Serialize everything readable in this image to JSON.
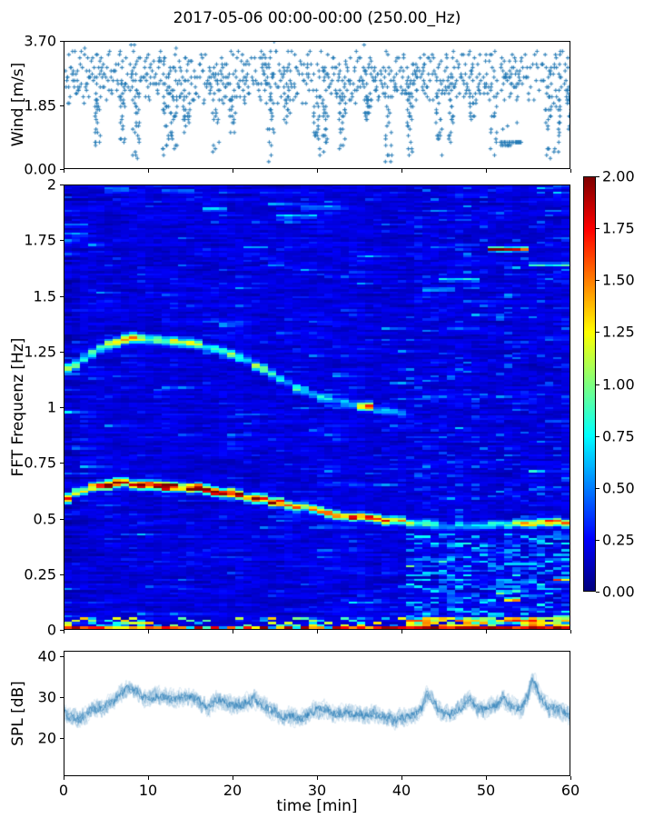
{
  "title": "2017-05-06 00:00-00:00 (250.00_Hz)",
  "colors": {
    "series_blue": "#1f77b4",
    "axis": "#000000",
    "background": "#ffffff"
  },
  "chart_data": [
    {
      "id": "wind",
      "type": "scatter",
      "ylabel": "Wind [m/s]",
      "ylim": [
        0,
        3.7
      ],
      "xlim": [
        0,
        60
      ],
      "yticks": [
        {
          "label": "3.70",
          "value": 3.7
        },
        {
          "label": "1.85",
          "value": 1.85
        },
        {
          "label": "0.00",
          "value": 0
        }
      ],
      "marker": "plus",
      "marker_color": "#1f77b4",
      "quantize_step": 0.095,
      "band": {
        "center": 2.62,
        "sd": 0.42,
        "min": 1.9,
        "max": 3.48,
        "density": 0.6,
        "step_min": 0.06
      },
      "outlier_times": [
        2.5,
        8,
        8.3,
        25,
        35.5
      ],
      "sparse_ranges": [
        [
          54.6,
          57.2,
          0.45
        ]
      ],
      "dips": [
        [
          4,
          0.5
        ],
        [
          7,
          0.35
        ],
        [
          8.5,
          0.15
        ],
        [
          12,
          0.3
        ],
        [
          13,
          0.5
        ],
        [
          14.5,
          0.9
        ],
        [
          18,
          0.3
        ],
        [
          20,
          1.0
        ],
        [
          24.5,
          0.15
        ],
        [
          26.5,
          1.3
        ],
        [
          30,
          0.05
        ],
        [
          31,
          0.2
        ],
        [
          33,
          0.5
        ],
        [
          36,
          1.3
        ],
        [
          38.5,
          0.1
        ],
        [
          41,
          0.35
        ],
        [
          44.5,
          0.2
        ],
        [
          46,
          0.6
        ],
        [
          48.5,
          1.3
        ],
        [
          51,
          0.3
        ],
        [
          57.5,
          0.2
        ],
        [
          58.5,
          0.3
        ],
        [
          60,
          0.9
        ]
      ],
      "flat_cluster": {
        "t0": 51.8,
        "t1": 54.3,
        "value": 0.74,
        "jitter": 0.1
      }
    },
    {
      "id": "spectrogram",
      "type": "heatmap",
      "ylabel": "FFT Frequenz [Hz]",
      "xlim": [
        0,
        60
      ],
      "ylim": [
        0,
        2
      ],
      "clim": [
        0,
        2
      ],
      "colormap": "jet",
      "yticks": [
        {
          "label": "2",
          "value": 2
        },
        {
          "label": "1.75",
          "value": 1.75
        },
        {
          "label": "1.5",
          "value": 1.5
        },
        {
          "label": "1.25",
          "value": 1.25
        },
        {
          "label": "1",
          "value": 1
        },
        {
          "label": "0.75",
          "value": 0.75
        },
        {
          "label": "0.5",
          "value": 0.5
        },
        {
          "label": "0.25",
          "value": 0.25
        },
        {
          "label": "0",
          "value": 0
        }
      ],
      "grid": {
        "nx": 62,
        "ny": 196
      },
      "background": {
        "base": 0.05,
        "rand": 0.24,
        "speckle_p": 0.1,
        "speckle_add": 0.38,
        "cyan_p": 0.012,
        "cyan_add": 0.6,
        "hsmooth": 0.55
      },
      "post_transition": {
        "t_start": 41,
        "f_max": 0.43,
        "p": 0.42,
        "add": 0.55
      },
      "tracks": [
        {
          "name": "upper-whistle",
          "width": 0.022,
          "points": [
            [
              0,
              1.17,
              1.3
            ],
            [
              2,
              1.2,
              1.0
            ],
            [
              4,
              1.26,
              0.95
            ],
            [
              6,
              1.29,
              1.1
            ],
            [
              8,
              1.31,
              1.6
            ],
            [
              10,
              1.3,
              1.25
            ],
            [
              12,
              1.295,
              1.05
            ],
            [
              14,
              1.29,
              1.15
            ],
            [
              16,
              1.28,
              0.95
            ],
            [
              18,
              1.26,
              0.85
            ],
            [
              20,
              1.23,
              1.15
            ],
            [
              22,
              1.2,
              0.85
            ],
            [
              24,
              1.16,
              0.9
            ],
            [
              26,
              1.12,
              0.8
            ],
            [
              28,
              1.08,
              0.72
            ],
            [
              30,
              1.05,
              0.62
            ],
            [
              32,
              1.03,
              0.6
            ],
            [
              34,
              1.01,
              0.55
            ],
            [
              36,
              1.0,
              1.5
            ],
            [
              37,
              0.99,
              0.8
            ],
            [
              38,
              0.98,
              0.55
            ],
            [
              40,
              0.97,
              0.45
            ],
            [
              42,
              0.96,
              0.3
            ]
          ]
        },
        {
          "name": "main-tone",
          "width": 0.02,
          "points": [
            [
              0,
              0.585,
              1.5
            ],
            [
              1,
              0.6,
              1.35
            ],
            [
              2,
              0.62,
              1.45
            ],
            [
              3,
              0.635,
              1.55
            ],
            [
              4,
              0.645,
              1.8
            ],
            [
              5,
              0.65,
              1.9
            ],
            [
              6,
              0.652,
              2.0
            ],
            [
              7,
              0.655,
              2.0
            ],
            [
              8,
              0.653,
              1.9
            ],
            [
              9,
              0.65,
              1.75
            ],
            [
              10,
              0.648,
              1.85
            ],
            [
              11,
              0.645,
              1.9
            ],
            [
              12,
              0.643,
              2.0
            ],
            [
              13,
              0.64,
              1.85
            ],
            [
              14,
              0.637,
              1.9
            ],
            [
              15,
              0.633,
              1.75
            ],
            [
              16,
              0.63,
              1.85
            ],
            [
              17,
              0.625,
              1.9
            ],
            [
              18,
              0.62,
              1.8
            ],
            [
              19,
              0.612,
              1.7
            ],
            [
              20,
              0.605,
              1.8
            ],
            [
              21,
              0.6,
              1.9
            ],
            [
              22,
              0.592,
              1.8
            ],
            [
              23,
              0.585,
              1.65
            ],
            [
              24,
              0.578,
              1.7
            ],
            [
              25,
              0.57,
              1.55
            ],
            [
              26,
              0.562,
              1.45
            ],
            [
              27,
              0.555,
              1.5
            ],
            [
              28,
              0.548,
              1.4
            ],
            [
              29,
              0.54,
              1.35
            ],
            [
              30,
              0.53,
              1.4
            ],
            [
              31,
              0.522,
              1.5
            ],
            [
              32,
              0.515,
              1.6
            ],
            [
              33,
              0.51,
              1.5
            ],
            [
              34,
              0.505,
              1.7
            ],
            [
              35,
              0.502,
              1.8
            ],
            [
              36,
              0.5,
              1.7
            ],
            [
              37,
              0.495,
              1.8
            ],
            [
              38,
              0.49,
              1.6
            ],
            [
              39,
              0.488,
              1.5
            ],
            [
              40,
              0.485,
              1.4
            ],
            [
              41,
              0.48,
              1.2
            ],
            [
              42,
              0.472,
              1.0
            ],
            [
              43,
              0.468,
              0.9
            ],
            [
              44,
              0.465,
              0.8
            ],
            [
              45,
              0.462,
              0.7
            ],
            [
              46,
              0.46,
              0.8
            ],
            [
              47,
              0.46,
              0.7
            ],
            [
              48,
              0.458,
              0.8
            ],
            [
              49,
              0.46,
              0.7
            ],
            [
              50,
              0.462,
              0.85
            ],
            [
              51,
              0.465,
              0.9
            ],
            [
              52,
              0.468,
              1.0
            ],
            [
              53,
              0.47,
              1.1
            ],
            [
              54,
              0.472,
              1.0
            ],
            [
              55,
              0.475,
              1.2
            ],
            [
              56,
              0.478,
              1.3
            ],
            [
              57,
              0.48,
              1.2
            ],
            [
              58,
              0.478,
              1.45
            ],
            [
              59,
              0.475,
              1.3
            ],
            [
              60,
              0.47,
              1.25
            ]
          ]
        }
      ],
      "streaks": [
        [
          50.5,
          55,
          1.71,
          1.9
        ],
        [
          45,
          49.5,
          1.575,
          0.75
        ],
        [
          55.5,
          60,
          1.64,
          0.85
        ],
        [
          25,
          30,
          1.86,
          0.7
        ],
        [
          28,
          33,
          1.9,
          0.6
        ],
        [
          0,
          2.5,
          1.78,
          0.55
        ],
        [
          0,
          3,
          1.82,
          0.55
        ],
        [
          5,
          8,
          1.98,
          0.55
        ],
        [
          12,
          15,
          1.97,
          0.5
        ],
        [
          16,
          19,
          1.89,
          0.65
        ],
        [
          21,
          24,
          1.72,
          0.5
        ],
        [
          24,
          26.5,
          1.64,
          0.6
        ],
        [
          43,
          46.5,
          1.53,
          0.6
        ],
        [
          52.5,
          54.5,
          0.13,
          1.5
        ],
        [
          58,
          60,
          0.22,
          1.4
        ],
        [
          41,
          44,
          0.035,
          1.5
        ],
        [
          47,
          49,
          0.04,
          1.4
        ],
        [
          52,
          56,
          0.035,
          1.5
        ],
        [
          58,
          60,
          0.05,
          1.3
        ]
      ],
      "bottom_band": {
        "f_red": 0.012,
        "f_orange": 0.05
      },
      "colorbar": {
        "ticks": [
          {
            "label": "2.00",
            "value": 2
          },
          {
            "label": "1.75",
            "value": 1.75
          },
          {
            "label": "1.50",
            "value": 1.5
          },
          {
            "label": "1.25",
            "value": 1.25
          },
          {
            "label": "1.00",
            "value": 1
          },
          {
            "label": "0.75",
            "value": 0.75
          },
          {
            "label": "0.50",
            "value": 0.5
          },
          {
            "label": "0.25",
            "value": 0.25
          },
          {
            "label": "0.00",
            "value": 0
          }
        ]
      }
    },
    {
      "id": "spl",
      "type": "line",
      "ylabel": "SPL [dB]",
      "xlabel": "time [min]",
      "ylim": [
        10.7,
        41.3
      ],
      "yticks": [
        {
          "label": "40",
          "value": 40
        },
        {
          "label": "30",
          "value": 30
        },
        {
          "label": "20",
          "value": 20
        }
      ],
      "xticks": [
        {
          "label": "0",
          "value": 0
        },
        {
          "label": "10",
          "value": 10
        },
        {
          "label": "20",
          "value": 20
        },
        {
          "label": "30",
          "value": 30
        },
        {
          "label": "40",
          "value": 40
        },
        {
          "label": "50",
          "value": 50
        },
        {
          "label": "60",
          "value": 60
        }
      ],
      "color": "#1f77b4",
      "t_step": 0.5,
      "mean": [
        26,
        25.5,
        25,
        24.5,
        25,
        25.5,
        26.5,
        27,
        27,
        27.5,
        28,
        28.5,
        29.5,
        30.5,
        31.5,
        32,
        32,
        31.5,
        30.5,
        30,
        30,
        30,
        30.5,
        30,
        30,
        29.5,
        29.5,
        30,
        30,
        30,
        30,
        29.5,
        29,
        28,
        27.5,
        28,
        29.5,
        29.5,
        29,
        28.5,
        28,
        28,
        28,
        28.5,
        29,
        30,
        28.5,
        28,
        27.5,
        27,
        26.5,
        25.5,
        25,
        25,
        25.5,
        25,
        24.5,
        25,
        26,
        26.5,
        27,
        27,
        27,
        26.5,
        26,
        26,
        26,
        26,
        26,
        26,
        26,
        25.5,
        25.5,
        26,
        26,
        25.5,
        25.5,
        25,
        24.5,
        24.5,
        25,
        25,
        25,
        25.5,
        26,
        27.5,
        30.5,
        30,
        28.5,
        27,
        26,
        26,
        26,
        26.5,
        27,
        28,
        29.5,
        28.5,
        27.5,
        27,
        27,
        27.5,
        28,
        28.5,
        30,
        29,
        28,
        27.5,
        27,
        28,
        30,
        34,
        33,
        30,
        28.5,
        27.5,
        27,
        27,
        27,
        26,
        25
      ],
      "noise_amp": 3.1,
      "envelope_passes": 7,
      "core_passes": 2
    }
  ]
}
